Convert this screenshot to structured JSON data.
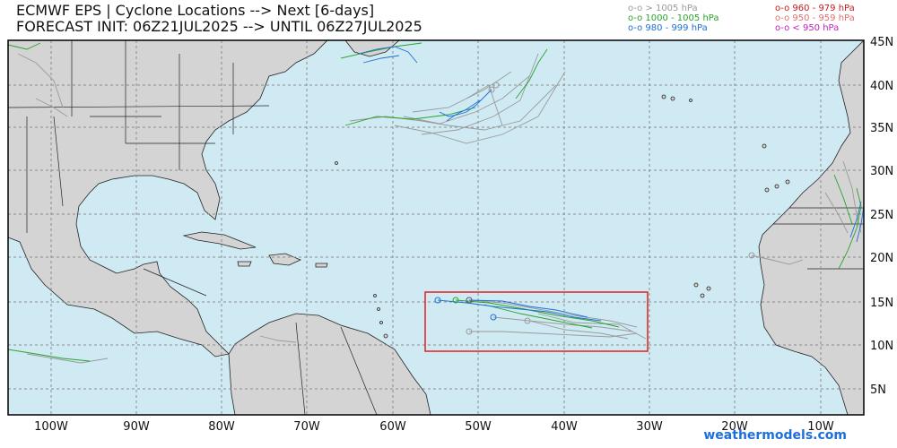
{
  "header": {
    "line1": "ECMWF EPS | Cyclone Locations --> Next [6-days]",
    "line2": "FORECAST INIT: 06Z21JUL2025 --> UNTIL 06Z27JUL2025"
  },
  "legend": {
    "col1": [
      {
        "label": "o-o > 1005 hPa",
        "color": "#9a9a9a"
      },
      {
        "label": "o-o 1000 - 1005 hPa",
        "color": "#2aa22a"
      },
      {
        "label": "o-o 980 - 999 hPa",
        "color": "#1f6fd6"
      }
    ],
    "col2": [
      {
        "label": "o-o 960 - 979 hPa",
        "color": "#c21d1d"
      },
      {
        "label": "o-o 950 - 959 hPa",
        "color": "#e07070"
      },
      {
        "label": "o-o < 950 hPa",
        "color": "#c020c0"
      }
    ]
  },
  "axes": {
    "lon_labels": [
      "100W",
      "90W",
      "80W",
      "70W",
      "60W",
      "50W",
      "40W",
      "30W",
      "20W",
      "10W"
    ],
    "lat_labels": [
      "45N",
      "40N",
      "35N",
      "30N",
      "25N",
      "20N",
      "15N",
      "10N",
      "5N"
    ]
  },
  "colors": {
    "ocean": "#cfeaf3",
    "land": "#d4d4d4",
    "border": "#222222",
    "grid": "#8c8c8c",
    "highlight": "#e02020"
  },
  "brand": "weathermodels.com"
}
